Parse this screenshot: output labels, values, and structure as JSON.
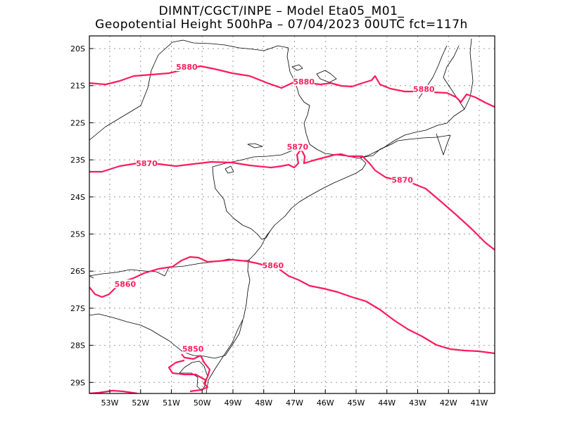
{
  "title": {
    "line1": "DIMNT/CGCT/INPE –  Model Eta05_M01_",
    "line2": "Geopotential Height 500hPa –  07/04/2023 00UTC fct=117h"
  },
  "axes": {
    "lat_labels": [
      "20S",
      "21S",
      "22S",
      "23S",
      "24S",
      "25S",
      "26S",
      "27S",
      "28S",
      "29S"
    ],
    "lon_labels": [
      "53W",
      "52W",
      "51W",
      "50W",
      "49W",
      "48W",
      "47W",
      "46W",
      "45W",
      "44W",
      "43W",
      "42W",
      "41W"
    ]
  },
  "contours": [
    {
      "level": "5880",
      "color": "#ff1a5c"
    },
    {
      "level": "5870",
      "color": "#ff1a5c"
    },
    {
      "level": "5860",
      "color": "#ff1a5c"
    },
    {
      "level": "5850",
      "color": "#ff1a5c"
    }
  ],
  "contour_labels": [
    {
      "text": "5880",
      "lon": -50.5,
      "lat": -20.55
    },
    {
      "text": "5880",
      "lon": -46.7,
      "lat": -20.95
    },
    {
      "text": "5880",
      "lon": -42.8,
      "lat": -21.15
    },
    {
      "text": "5870",
      "lon": -51.8,
      "lat": -23.15
    },
    {
      "text": "5870",
      "lon": -46.9,
      "lat": -22.7
    },
    {
      "text": "5870",
      "lon": -43.5,
      "lat": -23.6
    },
    {
      "text": "5860",
      "lon": -47.7,
      "lat": -25.9
    },
    {
      "text": "5860",
      "lon": -52.5,
      "lat": -26.4
    },
    {
      "text": "5850",
      "lon": -50.3,
      "lat": -28.15
    }
  ]
}
